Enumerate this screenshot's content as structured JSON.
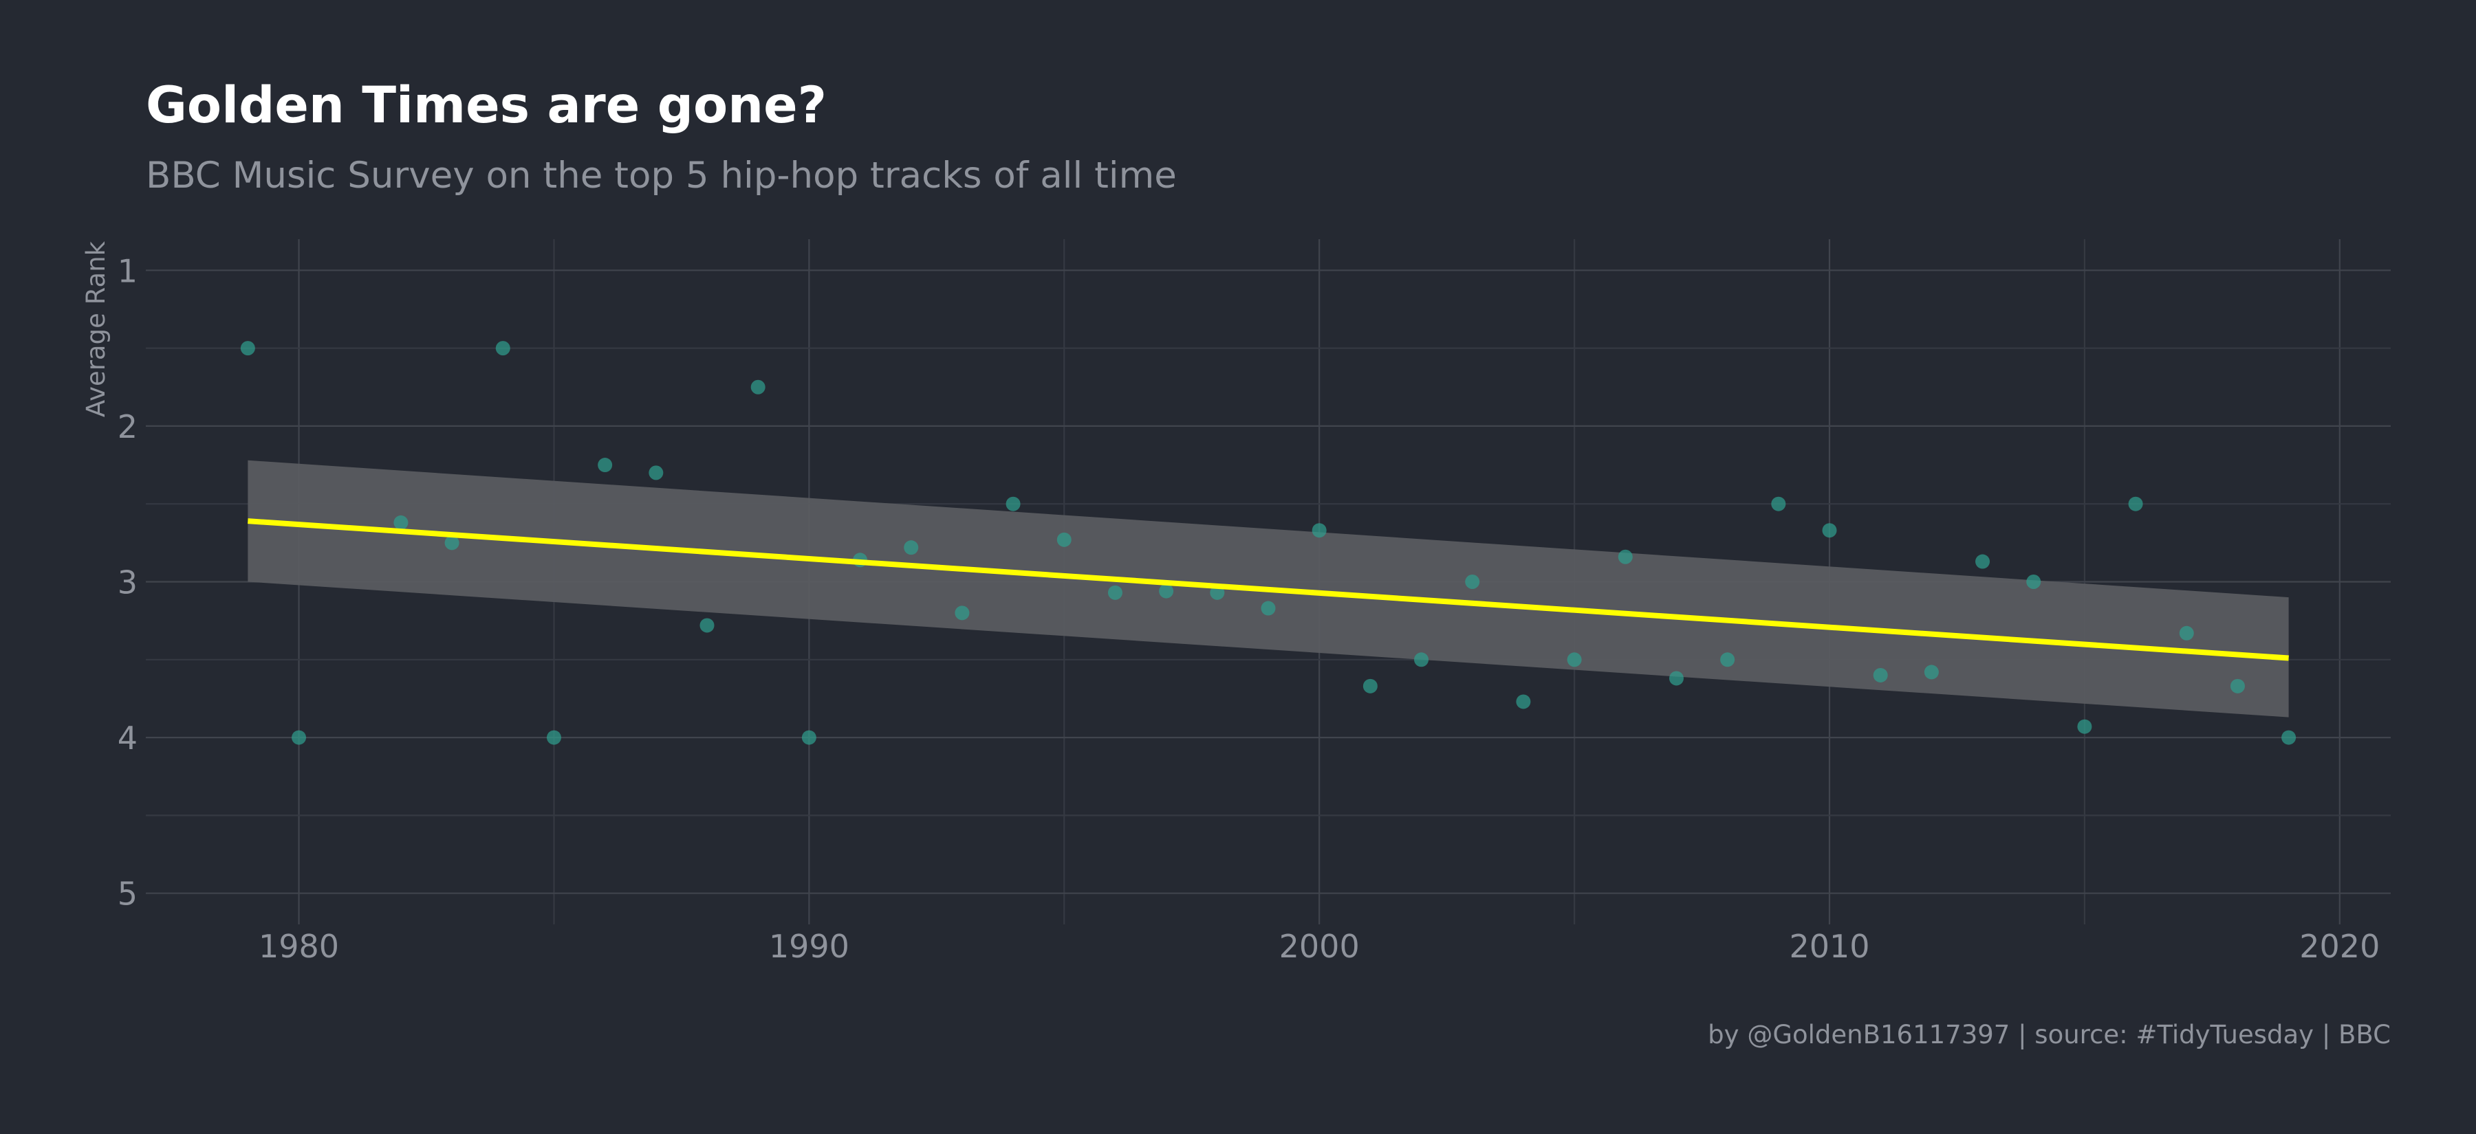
{
  "chart_data": {
    "type": "scatter",
    "title": "Golden Times are gone?",
    "subtitle": "BBC Music Survey on the top 5 hip-hop tracks of all time",
    "ylabel": "Average Rank",
    "xlabel": "",
    "caption": "by @GoldenB16117397 | source: #TidyTuesday | BBC",
    "xlim": [
      1977,
      2021
    ],
    "ylim": [
      5.2,
      0.8
    ],
    "y_reversed": true,
    "grid": true,
    "x_ticks": [
      1980,
      1990,
      2000,
      2010,
      2020
    ],
    "y_ticks": [
      1,
      2,
      3,
      4,
      5
    ],
    "points": [
      [
        1979,
        1.5
      ],
      [
        1980,
        4.0
      ],
      [
        1982,
        2.62
      ],
      [
        1983,
        2.75
      ],
      [
        1984,
        1.5
      ],
      [
        1985,
        4.0
      ],
      [
        1986,
        2.25
      ],
      [
        1987,
        2.3
      ],
      [
        1988,
        3.28
      ],
      [
        1989,
        1.75
      ],
      [
        1990,
        4.0
      ],
      [
        1991,
        2.86
      ],
      [
        1992,
        2.78
      ],
      [
        1993,
        3.2
      ],
      [
        1994,
        2.5
      ],
      [
        1995,
        2.73
      ],
      [
        1996,
        3.07
      ],
      [
        1997,
        3.06
      ],
      [
        1998,
        3.07
      ],
      [
        1999,
        3.17
      ],
      [
        2000,
        2.67
      ],
      [
        2001,
        3.67
      ],
      [
        2002,
        3.5
      ],
      [
        2003,
        3.0
      ],
      [
        2004,
        3.77
      ],
      [
        2005,
        3.5
      ],
      [
        2006,
        2.84
      ],
      [
        2007,
        3.62
      ],
      [
        2008,
        3.5
      ],
      [
        2009,
        2.5
      ],
      [
        2010,
        2.67
      ],
      [
        2011,
        3.6
      ],
      [
        2012,
        3.58
      ],
      [
        2013,
        2.87
      ],
      [
        2014,
        3.0
      ],
      [
        2015,
        3.93
      ],
      [
        2016,
        2.5
      ],
      [
        2017,
        3.33
      ],
      [
        2018,
        3.67
      ],
      [
        2019,
        4.0
      ]
    ],
    "trend": {
      "type": "linear",
      "line": [
        [
          1979,
          2.61
        ],
        [
          2019,
          3.49
        ]
      ],
      "band_upper": [
        [
          1979,
          2.22
        ],
        [
          2019,
          3.1
        ]
      ],
      "band_lower": [
        [
          1979,
          3.0
        ],
        [
          2019,
          3.87
        ]
      ]
    },
    "colors": {
      "background": "#252932",
      "point": "#2f9c8c",
      "trend_line": "#ffff00",
      "band": "#5a5c61",
      "title": "#ffffff",
      "muted_text": "#8f939c"
    }
  }
}
